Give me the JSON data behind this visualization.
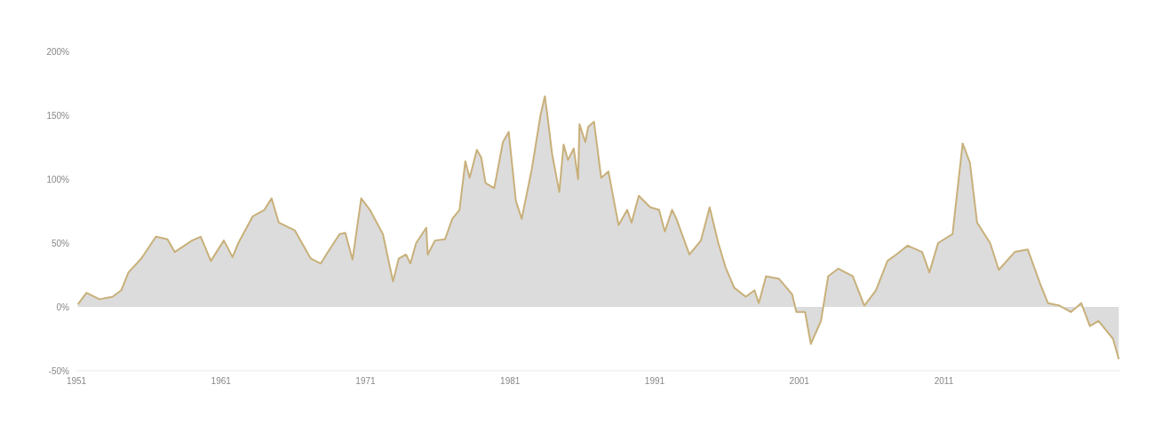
{
  "chart_data": {
    "type": "area",
    "x": [
      1951.1,
      1951.7,
      1952.6,
      1953.5,
      1954.1,
      1954.6,
      1955.5,
      1956.5,
      1957.3,
      1957.8,
      1959.0,
      1959.6,
      1960.3,
      1961.2,
      1961.8,
      1962.2,
      1963.2,
      1964.0,
      1964.5,
      1965.0,
      1966.1,
      1967.2,
      1967.9,
      1968.4,
      1969.2,
      1969.6,
      1970.1,
      1970.7,
      1971.3,
      1972.2,
      1972.9,
      1973.3,
      1973.8,
      1974.1,
      1974.5,
      1975.2,
      1975.3,
      1975.8,
      1976.5,
      1977.0,
      1977.5,
      1977.9,
      1978.2,
      1978.7,
      1979.0,
      1979.3,
      1979.9,
      1980.5,
      1980.9,
      1981.4,
      1981.8,
      1982.5,
      1983.1,
      1983.4,
      1983.6,
      1983.9,
      1984.4,
      1984.7,
      1985.0,
      1985.4,
      1985.7,
      1985.8,
      1986.2,
      1986.4,
      1986.8,
      1987.3,
      1987.8,
      1988.5,
      1989.1,
      1989.4,
      1989.9,
      1990.7,
      1991.3,
      1991.7,
      1992.2,
      1992.5,
      1993.4,
      1994.2,
      1994.8,
      1995.4,
      1995.9,
      1996.5,
      1997.3,
      1997.9,
      1998.2,
      1998.7,
      1999.6,
      2000.5,
      2000.8,
      2001.4,
      2001.8,
      2002.5,
      2003.0,
      2003.7,
      2004.7,
      2005.5,
      2006.3,
      2007.1,
      2007.7,
      2008.5,
      2009.5,
      2010.0,
      2010.6,
      2011.6,
      2012.3,
      2012.8,
      2013.3,
      2014.2,
      2014.8,
      2015.9,
      2016.8,
      2017.7,
      2018.2,
      2019.0,
      2019.8,
      2020.5,
      2021.1,
      2021.7,
      2022.7,
      2023.1
    ],
    "series": [
      {
        "color": "#c8b07a",
        "values": [
          2,
          11,
          6,
          8,
          13,
          27,
          38,
          55,
          53,
          43,
          52,
          55,
          36,
          52,
          39,
          50,
          71,
          76,
          85,
          66,
          60,
          38,
          34,
          43,
          57,
          58,
          37,
          85,
          76,
          57,
          20,
          38,
          41,
          34,
          50,
          62,
          41,
          52,
          53,
          69,
          76,
          114,
          101,
          123,
          117,
          97,
          93,
          129,
          137,
          83,
          69,
          108,
          150,
          165,
          148,
          120,
          90,
          127,
          115,
          124,
          100,
          143,
          129,
          141,
          145,
          101,
          106,
          64,
          76,
          66,
          87,
          78,
          76,
          59,
          76,
          69,
          41,
          52,
          78,
          50,
          31,
          15,
          8,
          13,
          3,
          24,
          22,
          10,
          -4,
          -4,
          -29,
          -11,
          24,
          30,
          24,
          1,
          13,
          36,
          41,
          48,
          43,
          27,
          50,
          57,
          128,
          113,
          66,
          50,
          29,
          43,
          45,
          17,
          3,
          1,
          -4,
          3,
          -15,
          -11,
          -25,
          -41
        ]
      }
    ],
    "xlim": [
      1951,
      2023.2
    ],
    "xticks": [
      1951,
      1961,
      1971,
      1981,
      1991,
      2001,
      2011
    ],
    "ylim": [
      -50,
      200
    ],
    "yticks": [
      {
        "value": -50,
        "label": "-50%"
      },
      {
        "value": 0,
        "label": "0%"
      },
      {
        "value": 50,
        "label": "50%"
      },
      {
        "value": 100,
        "label": "100%"
      },
      {
        "value": 150,
        "label": "150%"
      },
      {
        "value": 200,
        "label": "200%"
      }
    ],
    "grid": false
  }
}
